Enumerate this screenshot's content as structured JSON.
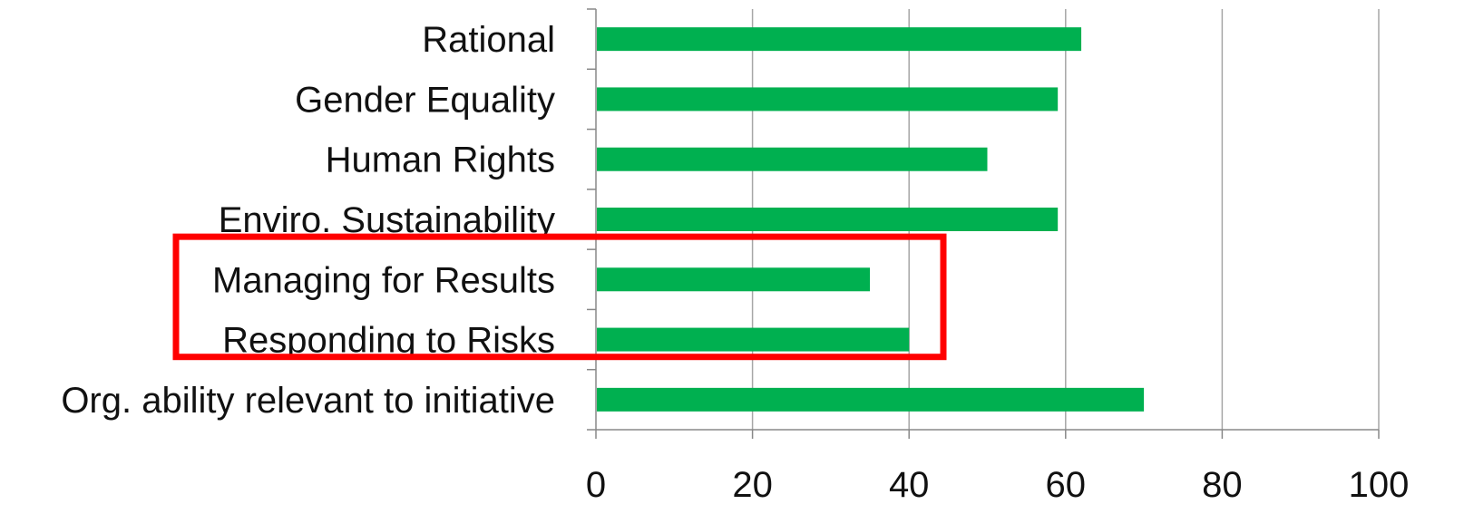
{
  "chart_data": {
    "type": "bar",
    "orientation": "horizontal",
    "categories": [
      "Rational",
      "Gender Equality",
      "Human Rights",
      "Enviro. Sustainability",
      "Managing for Results",
      "Responding to Risks",
      "Org. ability relevant to initiative"
    ],
    "series": [
      {
        "values": [
          62,
          59,
          50,
          59,
          35,
          40,
          70
        ]
      }
    ],
    "xlim": [
      0,
      100
    ],
    "xticks": [
      "0",
      "20",
      "40",
      "60",
      "80",
      "100"
    ],
    "grid": "vertical",
    "legend": "none",
    "highlight": {
      "categories": [
        "Managing for Results",
        "Responding to Risks"
      ],
      "color": "#ff0000"
    },
    "colors": {
      "bar": "#00b050",
      "grid": "#a6a6a6",
      "axis": "#888888"
    }
  }
}
